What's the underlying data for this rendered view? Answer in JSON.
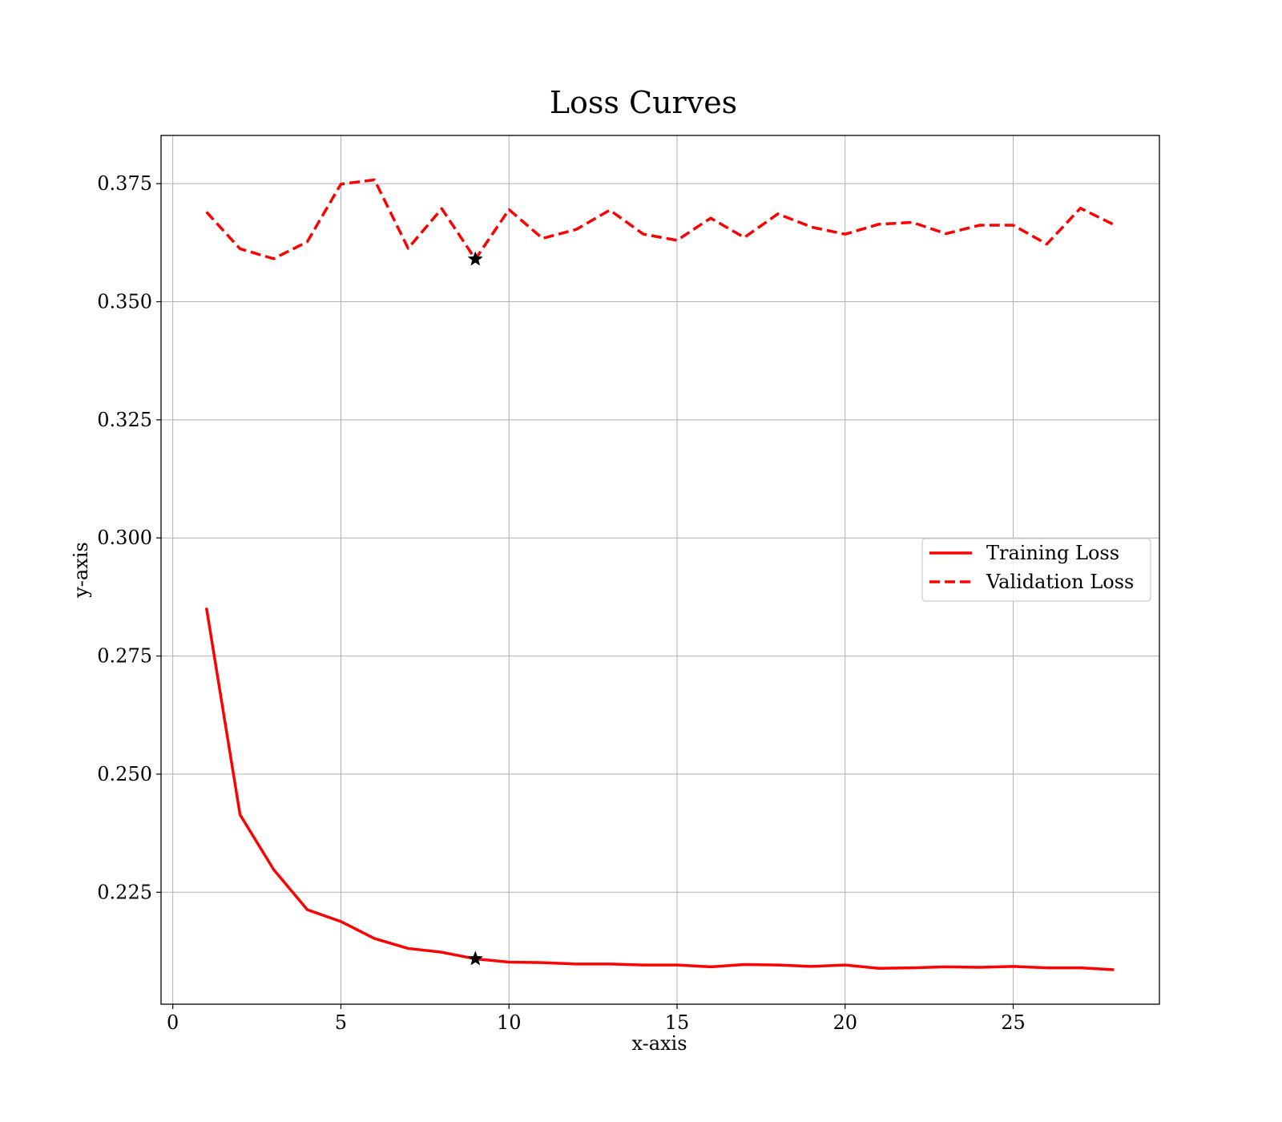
{
  "chart_data": {
    "type": "line",
    "title": "Loss Curves",
    "xlabel": "x-axis",
    "ylabel": "y-axis",
    "xlim": [
      -0.35,
      29.35
    ],
    "ylim": [
      0.2013,
      0.3852
    ],
    "x_ticks": [
      0,
      5,
      10,
      15,
      20,
      25
    ],
    "x_tick_labels": [
      "0",
      "5",
      "10",
      "15",
      "20",
      "25"
    ],
    "y_ticks": [
      0.225,
      0.25,
      0.275,
      0.3,
      0.325,
      0.35,
      0.375
    ],
    "y_tick_labels": [
      "0.225",
      "0.250",
      "0.275",
      "0.300",
      "0.325",
      "0.350",
      "0.375"
    ],
    "grid": true,
    "legend_position": "center-right",
    "x": [
      1,
      2,
      3,
      4,
      5,
      6,
      7,
      8,
      9,
      10,
      11,
      12,
      13,
      14,
      15,
      16,
      17,
      18,
      19,
      20,
      21,
      22,
      23,
      24,
      25,
      26,
      27,
      28
    ],
    "series": [
      {
        "name": "Training Loss",
        "color": "#ff0000",
        "line_style": "solid",
        "values": [
          0.2852,
          0.2414,
          0.2298,
          0.2213,
          0.2188,
          0.2152,
          0.2131,
          0.2123,
          0.2109,
          0.2102,
          0.2101,
          0.2098,
          0.2098,
          0.2096,
          0.2096,
          0.2092,
          0.2097,
          0.2096,
          0.2093,
          0.2096,
          0.2089,
          0.209,
          0.2092,
          0.2091,
          0.2093,
          0.209,
          0.209,
          0.2086
        ]
      },
      {
        "name": "Validation Loss",
        "color": "#ff0000",
        "line_style": "dashed",
        "values": [
          0.369,
          0.3612,
          0.3591,
          0.3627,
          0.3749,
          0.3758,
          0.3613,
          0.3697,
          0.359,
          0.3695,
          0.3634,
          0.3653,
          0.3694,
          0.3643,
          0.363,
          0.3677,
          0.3636,
          0.3686,
          0.3658,
          0.3643,
          0.3664,
          0.3668,
          0.3644,
          0.3662,
          0.3662,
          0.3622,
          0.3698,
          0.3663
        ]
      }
    ],
    "markers": [
      {
        "series": "Training Loss",
        "x": 9,
        "y": 0.2109,
        "symbol": "star",
        "color": "#000000"
      },
      {
        "series": "Validation Loss",
        "x": 9,
        "y": 0.359,
        "symbol": "star",
        "color": "#000000"
      }
    ]
  }
}
